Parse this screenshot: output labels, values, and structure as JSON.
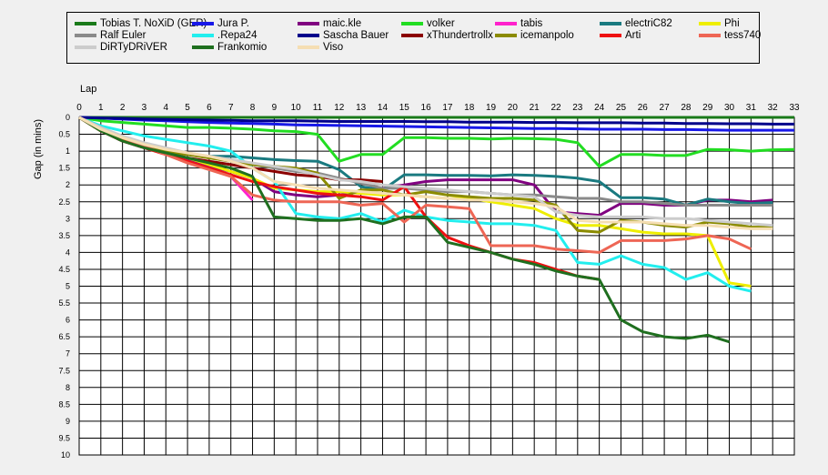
{
  "chart_data": {
    "type": "line",
    "xlabel": "Lap",
    "ylabel": "Gap (in mins)",
    "xlim": [
      0,
      33
    ],
    "ylim": [
      0,
      10
    ],
    "y_inverted": true,
    "grid": true,
    "legend_position": "top",
    "x_ticks": [
      "0",
      "1",
      "2",
      "3",
      "4",
      "5",
      "6",
      "7",
      "8",
      "9",
      "10",
      "11",
      "12",
      "13",
      "14",
      "15",
      "16",
      "17",
      "18",
      "19",
      "20",
      "21",
      "22",
      "23",
      "24",
      "25",
      "26",
      "27",
      "28",
      "29",
      "30",
      "31",
      "32",
      "33"
    ],
    "y_ticks": [
      "0",
      "0.5",
      "1",
      "1.5",
      "2",
      "2.5",
      "3",
      "3.5",
      "4",
      "4.5",
      "5",
      "5.5",
      "6",
      "6.5",
      "7",
      "7.5",
      "8",
      "8.5",
      "9",
      "9.5",
      "10"
    ],
    "series": [
      {
        "name": "Tobias T. NoXiD (GER)",
        "color": "#1a7a1a",
        "values": [
          0,
          0,
          0,
          0,
          0,
          0,
          0,
          0,
          0,
          0,
          0,
          0,
          0,
          0,
          0,
          0,
          0,
          0,
          0,
          0,
          0,
          0,
          0,
          0,
          0,
          0,
          0,
          0,
          0,
          0,
          0,
          0,
          0,
          0
        ]
      },
      {
        "name": "Jura P.",
        "color": "#1818e8",
        "values": [
          0,
          0.02,
          0.05,
          0.08,
          0.1,
          0.13,
          0.15,
          0.17,
          0.18,
          0.2,
          0.22,
          0.23,
          0.24,
          0.25,
          0.26,
          0.27,
          0.28,
          0.29,
          0.3,
          0.31,
          0.32,
          0.33,
          0.33,
          0.34,
          0.35,
          0.35,
          0.35,
          0.36,
          0.36,
          0.37,
          0.38,
          0.38,
          0.38,
          0.38
        ]
      },
      {
        "name": "maic.kle",
        "color": "#800080",
        "values": [
          0,
          0.4,
          0.7,
          0.9,
          1.05,
          1.25,
          1.45,
          1.6,
          1.8,
          2.2,
          2.3,
          2.35,
          2.3,
          2.2,
          2.1,
          2.0,
          1.9,
          1.85,
          1.85,
          1.85,
          1.85,
          2.0,
          2.8,
          2.85,
          2.9,
          2.55,
          2.55,
          2.6,
          2.6,
          2.45,
          2.45,
          2.5,
          2.45,
          null
        ]
      },
      {
        "name": "volker",
        "color": "#22dd22",
        "values": [
          0,
          0.1,
          0.15,
          0.2,
          0.25,
          0.3,
          0.3,
          0.32,
          0.35,
          0.4,
          0.42,
          0.5,
          1.3,
          1.1,
          1.1,
          0.6,
          0.6,
          0.62,
          0.62,
          0.64,
          0.62,
          0.63,
          0.65,
          0.75,
          1.45,
          1.1,
          1.1,
          1.13,
          1.13,
          0.95,
          0.96,
          1.0,
          0.96,
          0.95
        ]
      },
      {
        "name": "tabis",
        "color": "#ff22cc",
        "values": [
          0,
          0.35,
          0.6,
          0.85,
          1.05,
          1.3,
          1.5,
          1.75,
          2.45,
          null,
          null,
          null,
          null,
          null,
          null,
          null,
          null,
          null,
          null,
          null,
          null,
          null,
          null,
          null,
          null,
          null,
          null,
          null,
          null,
          null,
          null,
          null,
          null,
          null
        ]
      },
      {
        "name": "electriC82",
        "color": "#1a7a80",
        "values": [
          0,
          0.35,
          0.65,
          0.85,
          1.0,
          1.1,
          1.15,
          1.15,
          1.2,
          1.25,
          1.28,
          1.3,
          1.55,
          2.05,
          2.15,
          1.7,
          1.7,
          1.72,
          1.72,
          1.73,
          1.7,
          1.72,
          1.75,
          1.8,
          1.9,
          2.38,
          2.38,
          2.42,
          2.6,
          2.42,
          2.5,
          2.55,
          2.52,
          null
        ]
      },
      {
        "name": "Phi",
        "color": "#eeee00",
        "values": [
          0,
          0.4,
          0.65,
          0.85,
          1.0,
          1.2,
          1.4,
          1.6,
          1.8,
          2.1,
          2.15,
          2.2,
          2.2,
          2.25,
          2.3,
          2.3,
          2.35,
          2.4,
          2.4,
          2.5,
          2.6,
          2.7,
          3.0,
          3.2,
          3.2,
          3.3,
          3.4,
          3.45,
          3.45,
          3.5,
          4.9,
          5.0,
          null,
          null
        ]
      },
      {
        "name": "Ralf Euler",
        "color": "#8a8a8a",
        "values": [
          0,
          0.35,
          0.65,
          0.85,
          1.0,
          1.1,
          1.2,
          1.3,
          1.4,
          1.5,
          1.6,
          1.65,
          1.8,
          1.95,
          2.1,
          2.1,
          2.15,
          2.2,
          2.2,
          2.25,
          2.3,
          2.3,
          2.35,
          2.4,
          2.4,
          2.5,
          2.5,
          2.55,
          2.6,
          2.6,
          2.6,
          2.6,
          2.6,
          null
        ]
      },
      {
        "name": ".Repa24",
        "color": "#22eeee",
        "values": [
          0,
          0.25,
          0.4,
          0.55,
          0.65,
          0.75,
          0.85,
          1.0,
          1.5,
          1.9,
          2.85,
          2.95,
          3.0,
          2.85,
          3.1,
          2.75,
          2.95,
          3.05,
          3.1,
          3.15,
          3.15,
          3.2,
          3.35,
          4.3,
          4.35,
          4.1,
          4.35,
          4.45,
          4.8,
          4.6,
          5.0,
          5.15,
          null,
          null
        ]
      },
      {
        "name": "Sascha Bauer",
        "color": "#00008b",
        "values": [
          0,
          0.02,
          0.03,
          0.05,
          0.06,
          0.07,
          0.08,
          0.09,
          0.1,
          0.1,
          0.1,
          0.11,
          0.12,
          0.12,
          0.12,
          0.12,
          0.13,
          0.13,
          0.14,
          0.14,
          0.14,
          0.15,
          0.15,
          0.16,
          0.16,
          0.16,
          0.17,
          0.17,
          0.18,
          0.18,
          0.19,
          0.19,
          0.2,
          0.2
        ]
      },
      {
        "name": "xThundertrollx",
        "color": "#8b0000",
        "values": [
          0,
          0.4,
          0.65,
          0.85,
          1.05,
          1.2,
          1.3,
          1.4,
          1.5,
          1.6,
          1.7,
          1.75,
          1.85,
          1.85,
          1.9,
          null,
          null,
          null,
          null,
          null,
          null,
          null,
          null,
          null,
          null,
          null,
          null,
          null,
          null,
          null,
          null,
          null,
          null,
          null
        ]
      },
      {
        "name": "icemanpolo",
        "color": "#8b8b00",
        "values": [
          0,
          0.35,
          0.65,
          0.85,
          1.0,
          1.1,
          1.2,
          1.3,
          1.4,
          1.45,
          1.5,
          1.65,
          2.4,
          2.15,
          2.15,
          2.3,
          2.2,
          2.3,
          2.35,
          2.4,
          2.4,
          2.45,
          2.6,
          3.35,
          3.4,
          3.05,
          3.1,
          3.2,
          3.25,
          3.1,
          3.15,
          3.25,
          3.25,
          null
        ]
      },
      {
        "name": "Arti",
        "color": "#ee1111",
        "values": [
          0,
          0.4,
          0.7,
          0.9,
          1.1,
          1.3,
          1.5,
          1.7,
          1.9,
          2.05,
          2.15,
          2.25,
          2.3,
          2.35,
          2.45,
          2.05,
          2.95,
          3.55,
          3.8,
          4.0,
          4.2,
          4.3,
          4.5,
          4.7,
          4.8,
          null,
          null,
          null,
          null,
          null,
          null,
          null,
          null,
          null
        ]
      },
      {
        "name": "tess740",
        "color": "#ee6655",
        "values": [
          0,
          0.3,
          0.6,
          0.85,
          1.1,
          1.35,
          1.55,
          1.75,
          2.3,
          2.45,
          2.5,
          2.5,
          2.5,
          2.6,
          2.55,
          3.1,
          2.6,
          2.65,
          2.7,
          3.8,
          3.8,
          3.8,
          3.9,
          3.95,
          4.0,
          3.65,
          3.65,
          3.65,
          3.6,
          3.5,
          3.6,
          3.9,
          null,
          null
        ]
      },
      {
        "name": "DiRTyDRiVER",
        "color": "#cccccc",
        "values": [
          0,
          0.3,
          0.55,
          0.75,
          0.9,
          1.05,
          1.15,
          1.25,
          1.35,
          1.45,
          1.55,
          1.7,
          1.85,
          1.9,
          2.0,
          2.05,
          2.1,
          2.15,
          2.2,
          2.25,
          2.3,
          2.35,
          2.8,
          2.9,
          2.95,
          2.95,
          2.95,
          3.0,
          3.0,
          3.05,
          3.1,
          3.15,
          3.2,
          null
        ]
      },
      {
        "name": "Frankomio",
        "color": "#1f6f1f",
        "values": [
          0,
          0.4,
          0.7,
          0.9,
          1.05,
          1.2,
          1.35,
          1.5,
          1.75,
          2.95,
          3.0,
          3.05,
          3.05,
          3.0,
          3.15,
          2.95,
          2.95,
          3.7,
          3.85,
          4.0,
          4.2,
          4.35,
          4.55,
          4.7,
          4.8,
          6.0,
          6.35,
          6.5,
          6.55,
          6.45,
          6.65,
          null,
          null,
          null
        ]
      },
      {
        "name": "Viso",
        "color": "#f5deb3",
        "values": [
          0,
          0.35,
          0.6,
          0.8,
          0.95,
          1.05,
          1.15,
          1.3,
          1.5,
          1.9,
          2.0,
          2.1,
          2.15,
          2.2,
          2.25,
          2.3,
          2.35,
          2.4,
          2.45,
          2.45,
          2.5,
          2.55,
          2.65,
          3.05,
          3.1,
          3.1,
          3.1,
          3.15,
          3.2,
          3.2,
          3.25,
          3.3,
          3.3,
          null
        ]
      }
    ]
  }
}
